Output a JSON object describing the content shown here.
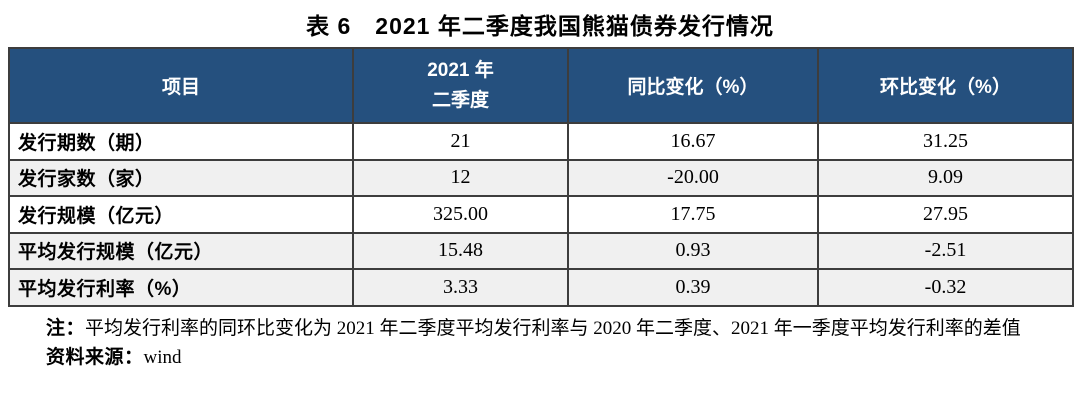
{
  "title": "表 6　2021 年二季度我国熊猫债券发行情况",
  "colors": {
    "header_bg": "#25507E",
    "header_text": "#FFFFFF",
    "row_shaded_bg": "#F0F0F0",
    "border": "#3D3D3D"
  },
  "table": {
    "headers": {
      "item": "项目",
      "q2_line1": "2021 年",
      "q2_line2": "二季度",
      "yoy": "同比变化（%）",
      "qoq": "环比变化（%）"
    },
    "rows": [
      {
        "label": "发行期数（期）",
        "values": [
          "21",
          "16.67",
          "31.25"
        ],
        "shaded": false
      },
      {
        "label": "发行家数（家）",
        "values": [
          "12",
          "-20.00",
          "9.09"
        ],
        "shaded": true
      },
      {
        "label": "发行规模（亿元）",
        "values": [
          "325.00",
          "17.75",
          "27.95"
        ],
        "shaded": false
      },
      {
        "label": "平均发行规模（亿元）",
        "values": [
          "15.48",
          "0.93",
          "-2.51"
        ],
        "shaded": true
      },
      {
        "label": "平均发行利率（%）",
        "values": [
          "3.33",
          "0.39",
          "-0.32"
        ],
        "shaded": true
      }
    ]
  },
  "notes": {
    "note_label": "注：",
    "note_text": "平均发行利率的同环比变化为 2021 年二季度平均发行利率与 2020 年二季度、2021 年一季度平均发行利率的差值",
    "source_label": "资料来源：",
    "source_text": "wind"
  },
  "chart_data": {
    "type": "table",
    "title": "表 6　2021 年二季度我国熊猫债券发行情况",
    "columns": [
      "项目",
      "2021 年二季度",
      "同比变化（%）",
      "环比变化（%）"
    ],
    "rows": [
      [
        "发行期数（期）",
        21,
        16.67,
        31.25
      ],
      [
        "发行家数（家）",
        12,
        -20.0,
        9.09
      ],
      [
        "发行规模（亿元）",
        325.0,
        17.75,
        27.95
      ],
      [
        "平均发行规模（亿元）",
        15.48,
        0.93,
        -2.51
      ],
      [
        "平均发行利率（%）",
        3.33,
        0.39,
        -0.32
      ]
    ],
    "notes": "平均发行利率的同环比变化为 2021 年二季度平均发行利率与 2020 年二季度、2021 年一季度平均发行利率的差值",
    "source": "wind"
  }
}
